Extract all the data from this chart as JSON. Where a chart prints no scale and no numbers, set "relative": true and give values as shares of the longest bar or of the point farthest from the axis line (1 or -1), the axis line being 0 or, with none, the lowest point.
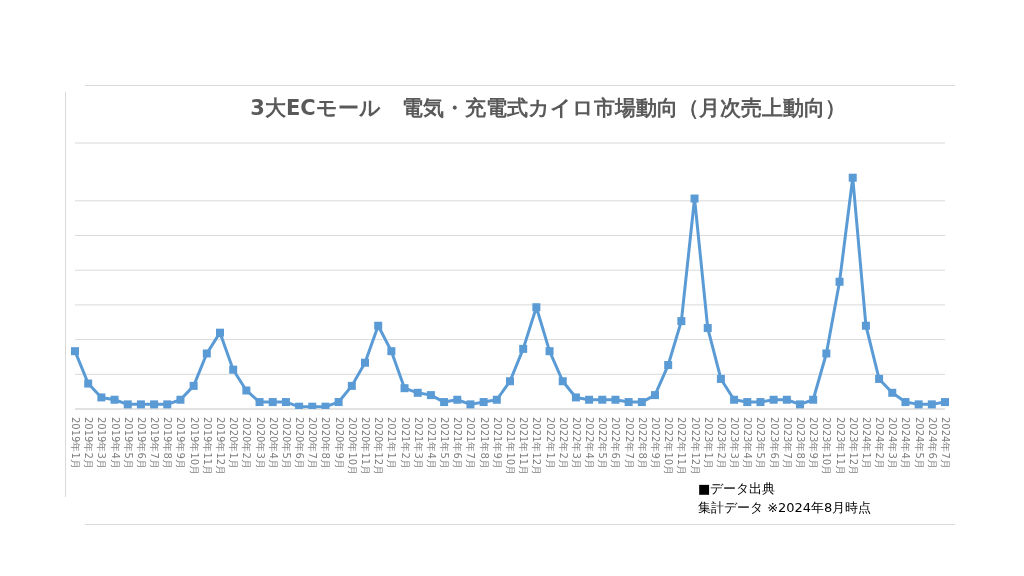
{
  "chart_data": {
    "type": "line",
    "title": "3大ECモール　電気・充電式カイロ市場動向（月次売上動向）",
    "categories": [
      "2019年1月",
      "2019年2月",
      "2019年3月",
      "2019年4月",
      "2019年5月",
      "2019年6月",
      "2019年7月",
      "2019年8月",
      "2019年9月",
      "2019年10月",
      "2019年11月",
      "2019年12月",
      "2020年1月",
      "2020年2月",
      "2020年3月",
      "2020年4月",
      "2020年5月",
      "2020年6月",
      "2020年7月",
      "2020年8月",
      "2020年9月",
      "2020年10月",
      "2020年11月",
      "2020年12月",
      "2021年1月",
      "2021年2月",
      "2021年3月",
      "2021年4月",
      "2021年5月",
      "2021年6月",
      "2021年7月",
      "2021年8月",
      "2021年9月",
      "2021年10月",
      "2021年11月",
      "2021年12月",
      "2022年1月",
      "2022年2月",
      "2022年3月",
      "2022年4月",
      "2022年5月",
      "2022年6月",
      "2022年7月",
      "2022年8月",
      "2022年9月",
      "2022年10月",
      "2022年11月",
      "2022年12月",
      "2023年1月",
      "2023年2月",
      "2023年3月",
      "2023年4月",
      "2023年5月",
      "2023年6月",
      "2023年7月",
      "2023年8月",
      "2023年9月",
      "2023年10月",
      "2023年11月",
      "2023年12月",
      "2024年1月",
      "2024年2月",
      "2024年3月",
      "2024年4月",
      "2024年5月",
      "2024年6月",
      "2024年7月"
    ],
    "series": [
      {
        "color": "#5b9bd5",
        "values": [
          0.25,
          0.11,
          0.05,
          0.04,
          0.02,
          0.02,
          0.02,
          0.02,
          0.04,
          0.1,
          0.24,
          0.33,
          0.17,
          0.08,
          0.03,
          0.03,
          0.03,
          0.01,
          0.01,
          0.01,
          0.03,
          0.1,
          0.2,
          0.36,
          0.25,
          0.09,
          0.07,
          0.06,
          0.03,
          0.04,
          0.02,
          0.03,
          0.04,
          0.12,
          0.26,
          0.44,
          0.25,
          0.12,
          0.05,
          0.04,
          0.04,
          0.04,
          0.03,
          0.03,
          0.06,
          0.19,
          0.38,
          0.91,
          0.35,
          0.13,
          0.04,
          0.03,
          0.03,
          0.04,
          0.04,
          0.02,
          0.04,
          0.24,
          0.55,
          1,
          0.36,
          0.13,
          0.07,
          0.03,
          0.02,
          0.02,
          0.03
        ]
      }
    ],
    "relative": true,
    "grid": "y",
    "marker": "square",
    "legend": false,
    "annotations": [
      "■データ出典",
      "集計データ ※2024年8月時点"
    ]
  }
}
